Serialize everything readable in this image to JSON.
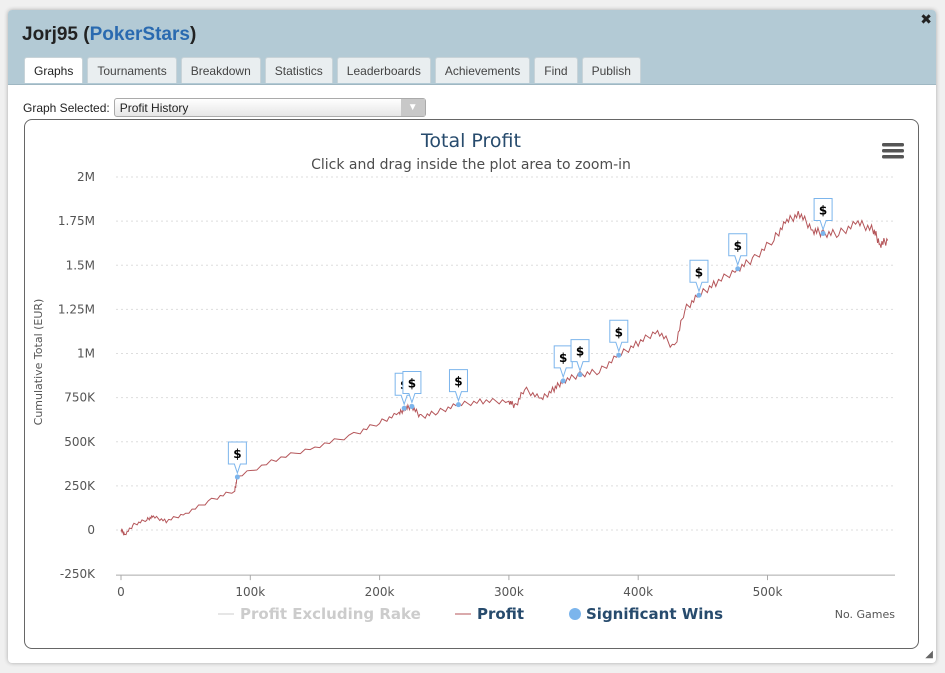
{
  "window": {
    "player": "Jorj95",
    "site": "PokerStars",
    "close_icon": "close-icon"
  },
  "tabs": [
    {
      "label": "Graphs",
      "active": true
    },
    {
      "label": "Tournaments"
    },
    {
      "label": "Breakdown"
    },
    {
      "label": "Statistics"
    },
    {
      "label": "Leaderboards"
    },
    {
      "label": "Achievements"
    },
    {
      "label": "Find"
    },
    {
      "label": "Publish"
    }
  ],
  "graph_select": {
    "label": "Graph Selected:",
    "value": "Profit History"
  },
  "chart_data": {
    "type": "line",
    "title": "Total Profit",
    "subtitle": "Click and drag inside the plot area to zoom-in",
    "xlabel": "No. Games",
    "ylabel": "Cumulative Total (EUR)",
    "xlim": [
      0,
      600000
    ],
    "ylim": [
      -250000,
      2000000
    ],
    "xticks": [
      {
        "v": 0,
        "l": "0"
      },
      {
        "v": 100000,
        "l": "100k"
      },
      {
        "v": 200000,
        "l": "200k"
      },
      {
        "v": 300000,
        "l": "300k"
      },
      {
        "v": 400000,
        "l": "400k"
      },
      {
        "v": 500000,
        "l": "500k"
      }
    ],
    "yticks": [
      {
        "v": 2000000,
        "l": "2M"
      },
      {
        "v": 1750000,
        "l": "1.75M"
      },
      {
        "v": 1500000,
        "l": "1.5M"
      },
      {
        "v": 1250000,
        "l": "1.25M"
      },
      {
        "v": 1000000,
        "l": "1M"
      },
      {
        "v": 750000,
        "l": "750K"
      },
      {
        "v": 500000,
        "l": "500K"
      },
      {
        "v": 250000,
        "l": "250K"
      },
      {
        "v": 0,
        "l": "0"
      },
      {
        "v": -250000,
        "l": "-250K"
      }
    ],
    "series": [
      {
        "name": "Profit",
        "color": "#b5565a",
        "points": [
          [
            0,
            0
          ],
          [
            3000,
            -25000
          ],
          [
            10000,
            30000
          ],
          [
            20000,
            60000
          ],
          [
            25000,
            75000
          ],
          [
            35000,
            50000
          ],
          [
            50000,
            95000
          ],
          [
            70000,
            170000
          ],
          [
            88000,
            225000
          ],
          [
            90000,
            300000
          ],
          [
            120000,
            400000
          ],
          [
            150000,
            470000
          ],
          [
            180000,
            540000
          ],
          [
            200000,
            610000
          ],
          [
            215000,
            660000
          ],
          [
            220000,
            690000
          ],
          [
            225000,
            700000
          ],
          [
            232000,
            640000
          ],
          [
            245000,
            670000
          ],
          [
            261000,
            710000
          ],
          [
            280000,
            730000
          ],
          [
            300000,
            730000
          ],
          [
            305000,
            700000
          ],
          [
            312000,
            800000
          ],
          [
            325000,
            740000
          ],
          [
            335000,
            800000
          ],
          [
            342000,
            845000
          ],
          [
            355000,
            880000
          ],
          [
            370000,
            900000
          ],
          [
            385000,
            990000
          ],
          [
            400000,
            1060000
          ],
          [
            415000,
            1130000
          ],
          [
            428000,
            1030000
          ],
          [
            436000,
            1250000
          ],
          [
            447000,
            1330000
          ],
          [
            460000,
            1400000
          ],
          [
            477000,
            1480000
          ],
          [
            490000,
            1540000
          ],
          [
            505000,
            1650000
          ],
          [
            515000,
            1750000
          ],
          [
            525000,
            1790000
          ],
          [
            535000,
            1700000
          ],
          [
            543000,
            1680000
          ],
          [
            555000,
            1680000
          ],
          [
            570000,
            1740000
          ],
          [
            582000,
            1700000
          ],
          [
            587000,
            1620000
          ],
          [
            593000,
            1640000
          ]
        ]
      }
    ],
    "legend": [
      {
        "name": "Profit Excluding Rake",
        "color": "#cccccc",
        "hidden": true
      },
      {
        "name": "Profit",
        "color": "#b5565a"
      },
      {
        "name": "Significant Wins",
        "color": "#7cb5ec"
      }
    ],
    "significant_wins": {
      "label": "$",
      "points": [
        [
          90000,
          300000
        ],
        [
          219000,
          690000
        ],
        [
          225000,
          700000
        ],
        [
          261000,
          710000
        ],
        [
          342000,
          845000
        ],
        [
          355000,
          880000
        ],
        [
          385000,
          990000
        ],
        [
          447000,
          1330000
        ],
        [
          477000,
          1480000
        ],
        [
          543000,
          1680000
        ]
      ]
    }
  }
}
